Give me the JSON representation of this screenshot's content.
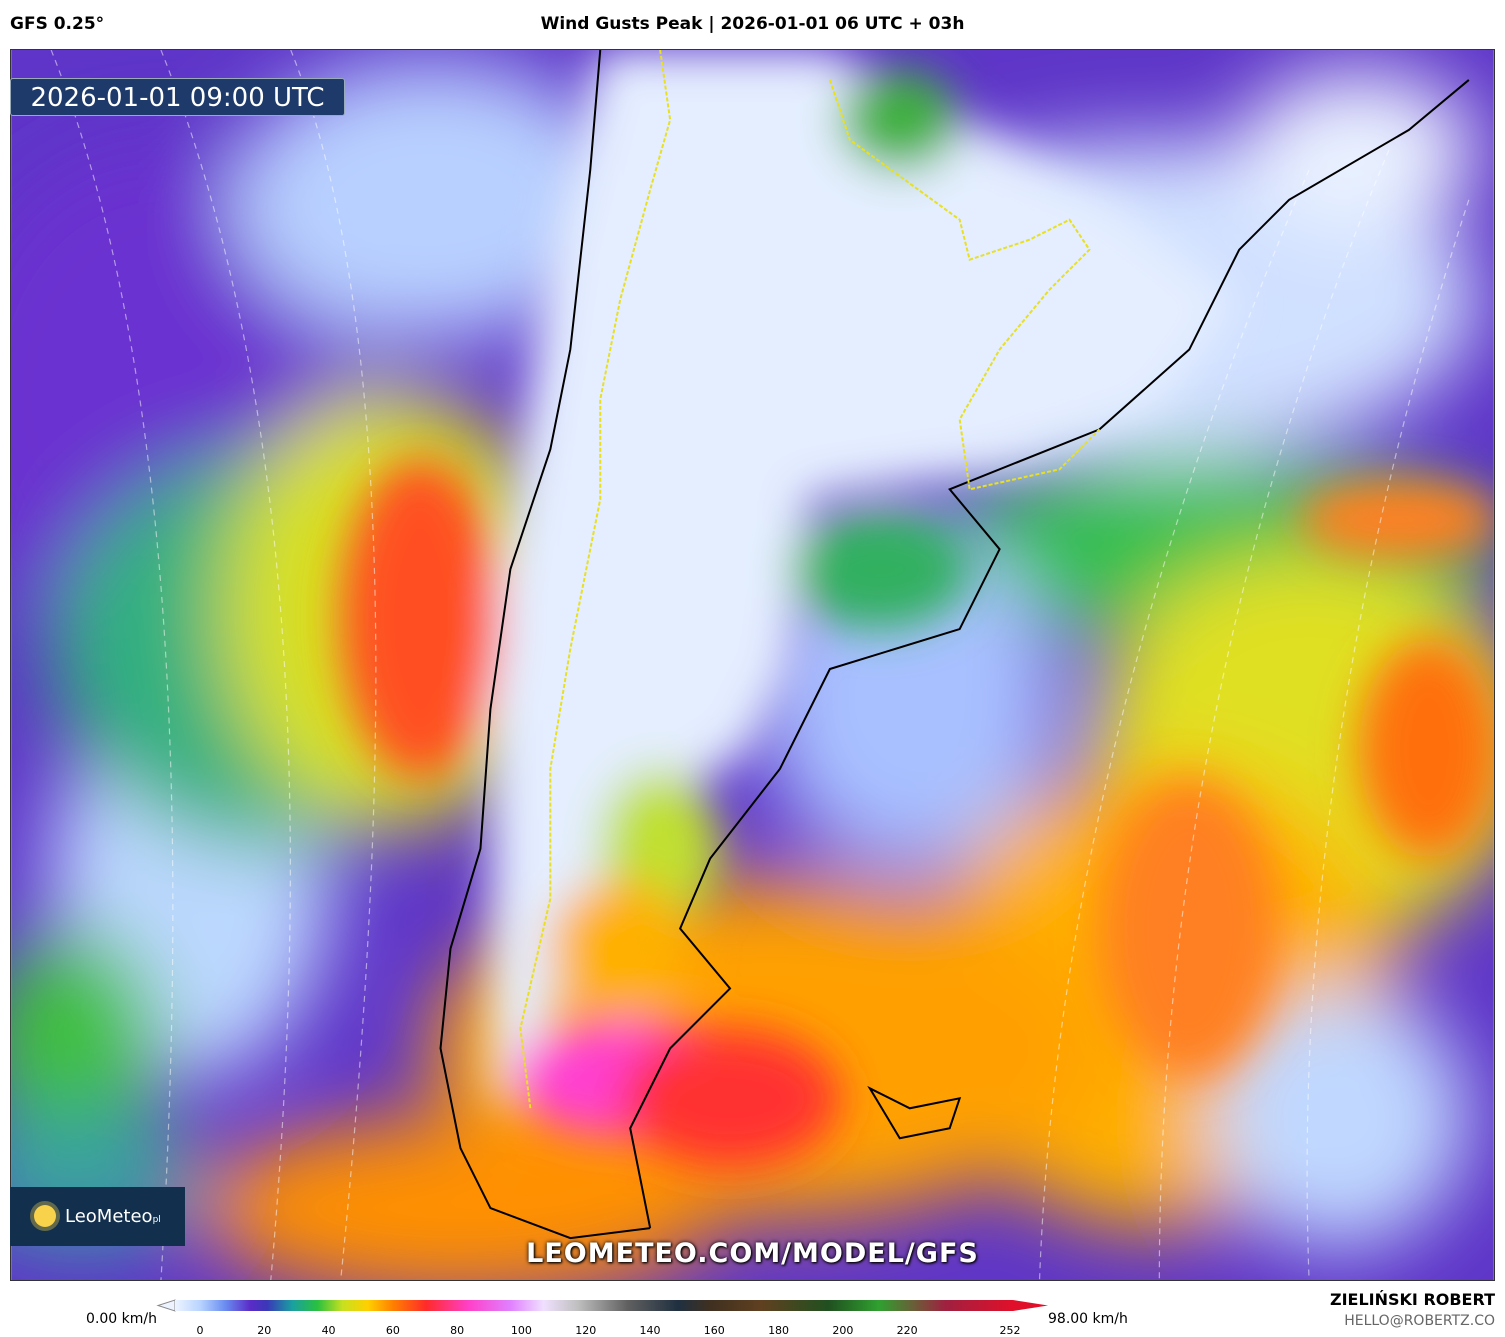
{
  "header": {
    "model": "GFS 0.25°",
    "title": "Wind Gusts Peak | 2026-01-01 06 UTC + 03h"
  },
  "map": {
    "valid_time": "2026-01-01 09:00 UTC",
    "logo": "LeoMeteo",
    "logo_suffix": "pl",
    "watermark": "LEOMETEO.COM/MODEL/GFS"
  },
  "colorbar": {
    "min_label": "0.00 km/h",
    "max_label": "98.00 km/h",
    "ticks": [
      0,
      20,
      40,
      60,
      80,
      100,
      120,
      140,
      160,
      180,
      200,
      220,
      252
    ]
  },
  "footer": {
    "author": "ZIELIŃSKI ROBERT",
    "contact": "HELLO@ROBERTZ.CO"
  }
}
